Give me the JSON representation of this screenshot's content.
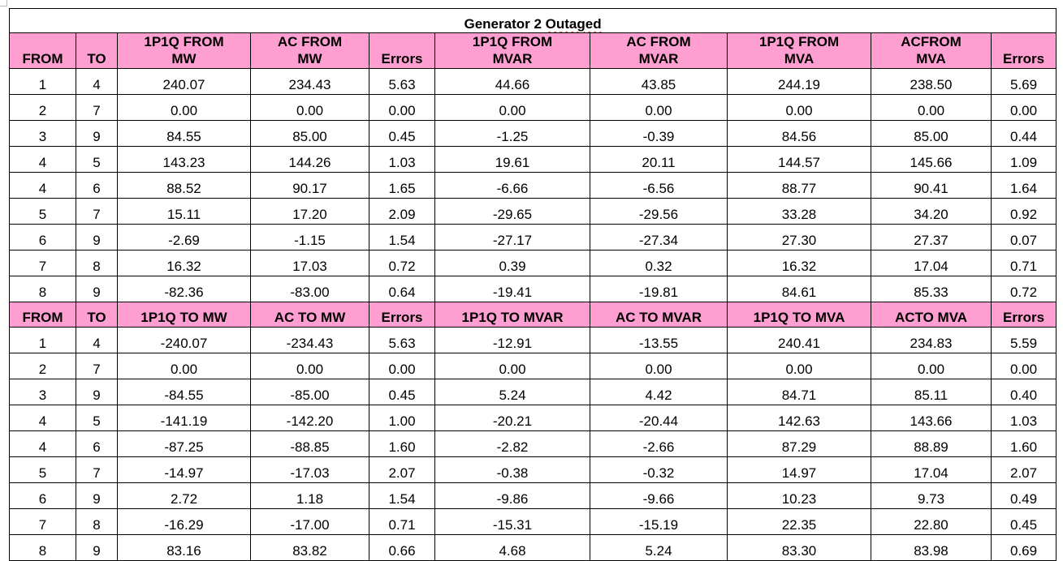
{
  "document": {
    "title_prefix": "Generator 2 ",
    "title_flagged": "Outaged"
  },
  "from_section": {
    "headers": [
      "FROM",
      "TO",
      "1P1Q FROM\nMW",
      "AC FROM\nMW",
      "Errors",
      "1P1Q FROM\nMVAR",
      "AC FROM\nMVAR",
      "1P1Q FROM\nMVA",
      "ACFROM\nMVA",
      "Errors"
    ],
    "rows": [
      [
        "1",
        "4",
        "240.07",
        "234.43",
        "5.63",
        "44.66",
        "43.85",
        "244.19",
        "238.50",
        "5.69"
      ],
      [
        "2",
        "7",
        "0.00",
        "0.00",
        "0.00",
        "0.00",
        "0.00",
        "0.00",
        "0.00",
        "0.00"
      ],
      [
        "3",
        "9",
        "84.55",
        "85.00",
        "0.45",
        "-1.25",
        "-0.39",
        "84.56",
        "85.00",
        "0.44"
      ],
      [
        "4",
        "5",
        "143.23",
        "144.26",
        "1.03",
        "19.61",
        "20.11",
        "144.57",
        "145.66",
        "1.09"
      ],
      [
        "4",
        "6",
        "88.52",
        "90.17",
        "1.65",
        "-6.66",
        "-6.56",
        "88.77",
        "90.41",
        "1.64"
      ],
      [
        "5",
        "7",
        "15.11",
        "17.20",
        "2.09",
        "-29.65",
        "-29.56",
        "33.28",
        "34.20",
        "0.92"
      ],
      [
        "6",
        "9",
        "-2.69",
        "-1.15",
        "1.54",
        "-27.17",
        "-27.34",
        "27.30",
        "27.37",
        "0.07"
      ],
      [
        "7",
        "8",
        "16.32",
        "17.03",
        "0.72",
        "0.39",
        "0.32",
        "16.32",
        "17.04",
        "0.71"
      ],
      [
        "8",
        "9",
        "-82.36",
        "-83.00",
        "0.64",
        "-19.41",
        "-19.81",
        "84.61",
        "85.33",
        "0.72"
      ]
    ]
  },
  "to_section": {
    "headers": [
      "FROM",
      "TO",
      "1P1Q TO MW",
      "AC TO MW",
      "Errors",
      "1P1Q TO MVAR",
      "AC TO MVAR",
      "1P1Q TO MVA",
      "ACTO MVA",
      "Errors"
    ],
    "rows": [
      [
        "1",
        "4",
        "-240.07",
        "-234.43",
        "5.63",
        "-12.91",
        "-13.55",
        "240.41",
        "234.83",
        "5.59"
      ],
      [
        "2",
        "7",
        "0.00",
        "0.00",
        "0.00",
        "0.00",
        "0.00",
        "0.00",
        "0.00",
        "0.00"
      ],
      [
        "3",
        "9",
        "-84.55",
        "-85.00",
        "0.45",
        "5.24",
        "4.42",
        "84.71",
        "85.11",
        "0.40"
      ],
      [
        "4",
        "5",
        "-141.19",
        "-142.20",
        "1.00",
        "-20.21",
        "-20.44",
        "142.63",
        "143.66",
        "1.03"
      ],
      [
        "4",
        "6",
        "-87.25",
        "-88.85",
        "1.60",
        "-2.82",
        "-2.66",
        "87.29",
        "88.89",
        "1.60"
      ],
      [
        "5",
        "7",
        "-14.97",
        "-17.03",
        "2.07",
        "-0.38",
        "-0.32",
        "14.97",
        "17.04",
        "2.07"
      ],
      [
        "6",
        "9",
        "2.72",
        "1.18",
        "1.54",
        "-9.86",
        "-9.66",
        "10.23",
        "9.73",
        "0.49"
      ],
      [
        "7",
        "8",
        "-16.29",
        "-17.00",
        "0.71",
        "-15.31",
        "-15.19",
        "22.35",
        "22.80",
        "0.45"
      ],
      [
        "8",
        "9",
        "83.16",
        "83.82",
        "0.66",
        "4.68",
        "5.24",
        "83.30",
        "83.98",
        "0.69"
      ]
    ]
  },
  "colors": {
    "header_fill": "#ff9fd1",
    "grid_line": "#000000",
    "spellcheck_underline": "#d64545"
  }
}
